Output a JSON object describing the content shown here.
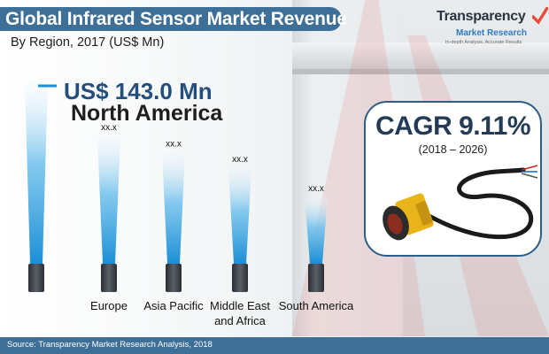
{
  "header": {
    "title": "Global Infrared Sensor Market Revenue",
    "subtitle": "By Region, 2017 (US$ Mn)"
  },
  "logo": {
    "name": "Transparency",
    "sub": "Market Research",
    "tagline": "In-depth Analysis. Accurate Results"
  },
  "highlight": {
    "value": "US$ 143.0 Mn",
    "region": "North America"
  },
  "cagr": {
    "value": "CAGR 9.11%",
    "period": "(2018 – 2026)"
  },
  "footer": {
    "source": "Source: Transparency Market Research Analysis, 2018"
  },
  "colors": {
    "beam_top": "#1b8fd6",
    "beam_bottom": "#e9f5fc",
    "brand_blue": "#3e6f97",
    "pedestal": "#3a3f44"
  },
  "chart_data": {
    "type": "bar",
    "title": "Global Infrared Sensor Market Revenue",
    "subtitle": "By Region, 2017 (US$ Mn)",
    "categories": [
      "North America",
      "Europe",
      "Asia Pacific",
      "Middle East and Africa",
      "South America"
    ],
    "category_lines": [
      [
        ""
      ],
      [
        "Europe"
      ],
      [
        "Asia Pacific"
      ],
      [
        "Middle East",
        "and Africa"
      ],
      [
        "South America"
      ]
    ],
    "values": [
      143.0,
      100,
      87,
      75,
      52
    ],
    "value_labels": [
      "",
      "xx.x",
      "xx.x",
      "xx.x",
      "xx.x"
    ],
    "values_note": "only North America is numerically labeled (US$ 143.0 Mn); other values estimated from beam heights",
    "ylim": [
      0,
      150
    ]
  }
}
